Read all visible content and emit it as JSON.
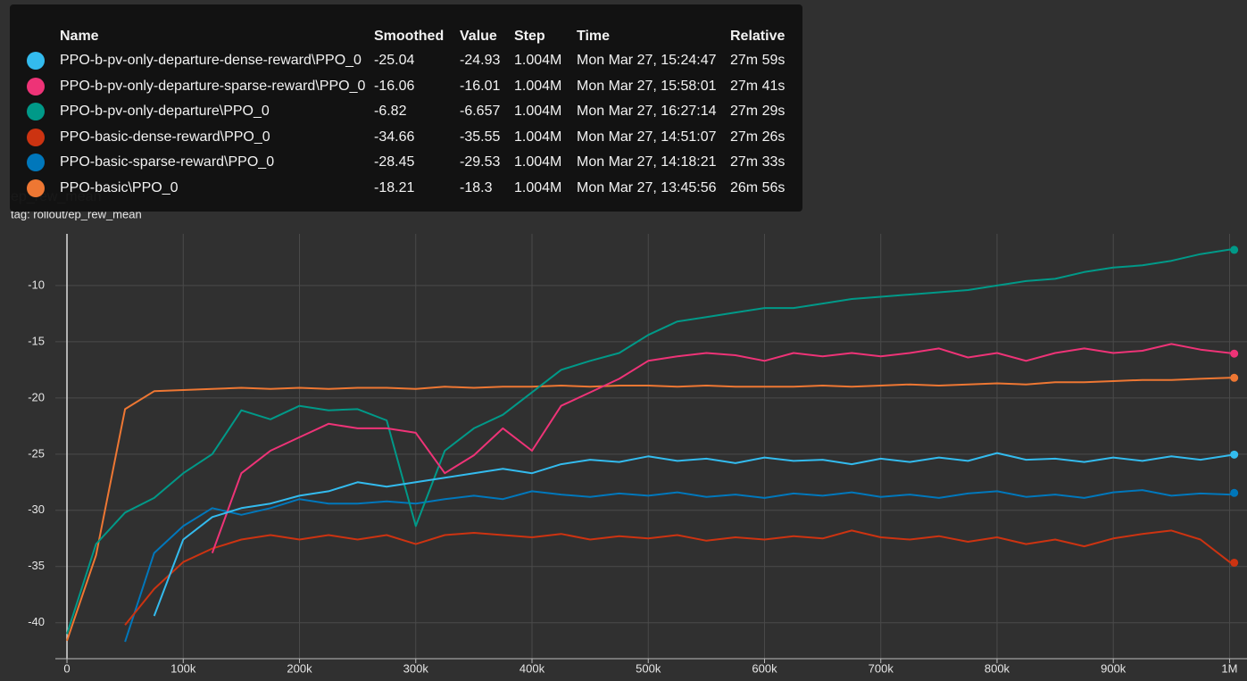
{
  "chart_data": {
    "type": "line",
    "title": "ep_rew_mean",
    "subtitle": "tag: rollout/ep_rew_mean",
    "x": [
      0,
      25000,
      50000,
      75000,
      100000,
      125000,
      150000,
      175000,
      200000,
      225000,
      250000,
      275000,
      300000,
      325000,
      350000,
      375000,
      400000,
      425000,
      450000,
      475000,
      500000,
      525000,
      550000,
      575000,
      600000,
      625000,
      650000,
      675000,
      700000,
      725000,
      750000,
      775000,
      800000,
      825000,
      850000,
      875000,
      900000,
      925000,
      950000,
      975000,
      1000000,
      1004000
    ],
    "series": [
      {
        "name": "PPO-b-pv-only-departure-dense-reward\\PPO_0",
        "color": "#33bbee",
        "values": [
          null,
          null,
          null,
          -39.4,
          -32.6,
          -30.6,
          -29.8,
          -29.4,
          -28.7,
          -28.3,
          -27.5,
          -27.9,
          -27.5,
          -27.1,
          -26.7,
          -26.3,
          -26.7,
          -25.9,
          -25.5,
          -25.7,
          -25.2,
          -25.6,
          -25.4,
          -25.8,
          -25.3,
          -25.6,
          -25.5,
          -25.9,
          -25.4,
          -25.7,
          -25.3,
          -25.6,
          -24.9,
          -25.5,
          -25.4,
          -25.7,
          -25.3,
          -25.6,
          -25.2,
          -25.5,
          -25.1,
          -25.04
        ]
      },
      {
        "name": "PPO-b-pv-only-departure-sparse-reward\\PPO_0",
        "color": "#ee3377",
        "values": [
          null,
          null,
          null,
          null,
          null,
          -33.8,
          -26.7,
          -24.7,
          -23.5,
          -22.3,
          -22.7,
          -22.7,
          -23.1,
          -26.7,
          -25.1,
          -22.7,
          -24.7,
          -20.7,
          -19.5,
          -18.3,
          -16.7,
          -16.3,
          -16,
          -16.2,
          -16.7,
          -16,
          -16.3,
          -16,
          -16.3,
          -16,
          -15.6,
          -16.4,
          -16,
          -16.7,
          -16,
          -15.6,
          -16,
          -15.8,
          -15.2,
          -15.7,
          -16,
          -16.06
        ]
      },
      {
        "name": "PPO-b-pv-only-departure\\PPO_0",
        "color": "#009988",
        "values": [
          -41,
          -33,
          -30.2,
          -28.9,
          -26.7,
          -25,
          -21.1,
          -21.9,
          -20.7,
          -21.1,
          -21,
          -22,
          -31.4,
          -24.7,
          -22.7,
          -21.5,
          -19.5,
          -17.5,
          -16.7,
          -16,
          -14.4,
          -13.2,
          -12.8,
          -12.4,
          -12,
          -12,
          -11.6,
          -11.2,
          -11,
          -10.8,
          -10.6,
          -10.4,
          -10,
          -9.6,
          -9.4,
          -8.8,
          -8.4,
          -8.2,
          -7.8,
          -7.2,
          -6.8,
          -6.82
        ]
      },
      {
        "name": "PPO-basic-dense-reward\\PPO_0",
        "color": "#cc3311",
        "values": [
          null,
          null,
          -40.2,
          -37,
          -34.6,
          -33.4,
          -32.6,
          -32.2,
          -32.6,
          -32.2,
          -32.6,
          -32.2,
          -33,
          -32.2,
          -32,
          -32.2,
          -32.4,
          -32.1,
          -32.6,
          -32.3,
          -32.5,
          -32.2,
          -32.7,
          -32.4,
          -32.6,
          -32.3,
          -32.5,
          -31.8,
          -32.4,
          -32.6,
          -32.3,
          -32.8,
          -32.4,
          -33,
          -32.6,
          -33.2,
          -32.5,
          -32.1,
          -31.8,
          -32.6,
          -34.6,
          -34.66
        ]
      },
      {
        "name": "PPO-basic-sparse-reward\\PPO_0",
        "color": "#0077bb",
        "values": [
          null,
          null,
          -41.7,
          -33.8,
          -31.4,
          -29.8,
          -30.4,
          -29.8,
          -29,
          -29.4,
          -29.4,
          -29.2,
          -29.4,
          -29,
          -28.7,
          -29,
          -28.3,
          -28.6,
          -28.8,
          -28.5,
          -28.7,
          -28.4,
          -28.8,
          -28.6,
          -28.9,
          -28.5,
          -28.7,
          -28.4,
          -28.8,
          -28.6,
          -28.9,
          -28.5,
          -28.3,
          -28.8,
          -28.6,
          -28.9,
          -28.4,
          -28.2,
          -28.7,
          -28.5,
          -28.6,
          -28.45
        ]
      },
      {
        "name": "PPO-basic\\PPO_0",
        "color": "#ee7733",
        "values": [
          -41.6,
          -34,
          -21,
          -19.4,
          -19.3,
          -19.2,
          -19.1,
          -19.2,
          -19.1,
          -19.2,
          -19.1,
          -19.1,
          -19.2,
          -19,
          -19.1,
          -19,
          -19,
          -18.9,
          -19,
          -18.9,
          -18.9,
          -19,
          -18.9,
          -19,
          -19,
          -19,
          -18.9,
          -19,
          -18.9,
          -18.8,
          -18.9,
          -18.8,
          -18.7,
          -18.8,
          -18.6,
          -18.6,
          -18.5,
          -18.4,
          -18.4,
          -18.3,
          -18.2,
          -18.21
        ]
      }
    ],
    "xlim": [
      -10000,
      1015000
    ],
    "ylim": [
      -43.2,
      -5.4
    ],
    "xticks": [
      0,
      {
        "value": 100000,
        "label": "100k"
      },
      {
        "value": 200000,
        "label": "200k"
      },
      {
        "value": 300000,
        "label": "300k"
      },
      {
        "value": 400000,
        "label": "400k"
      },
      {
        "value": 500000,
        "label": "500k"
      },
      {
        "value": 600000,
        "label": "600k"
      },
      {
        "value": 700000,
        "label": "700k"
      },
      {
        "value": 800000,
        "label": "800k"
      },
      {
        "value": 900000,
        "label": "900k"
      },
      {
        "value": 1000000,
        "label": "1M"
      }
    ],
    "yticks": [
      -40,
      -35,
      -30,
      -25,
      -20,
      -15,
      -10
    ],
    "grid": true
  },
  "tooltip": {
    "columns": [
      "Name",
      "Smoothed",
      "Value",
      "Step",
      "Time",
      "Relative"
    ],
    "rows": [
      {
        "value": -24.93,
        "step": "1.004M",
        "time": "Mon Mar 27, 15:24:47",
        "relative": "27m 59s"
      },
      {
        "value": -16.01,
        "step": "1.004M",
        "time": "Mon Mar 27, 15:58:01",
        "relative": "27m 41s"
      },
      {
        "value": -6.657,
        "step": "1.004M",
        "time": "Mon Mar 27, 16:27:14",
        "relative": "27m 29s"
      },
      {
        "value": -35.55,
        "step": "1.004M",
        "time": "Mon Mar 27, 14:51:07",
        "relative": "27m 26s"
      },
      {
        "value": -29.53,
        "step": "1.004M",
        "time": "Mon Mar 27, 14:18:21",
        "relative": "27m 33s"
      },
      {
        "value": -18.3,
        "step": "1.004M",
        "time": "Mon Mar 27, 13:45:56",
        "relative": "26m 56s"
      }
    ]
  }
}
